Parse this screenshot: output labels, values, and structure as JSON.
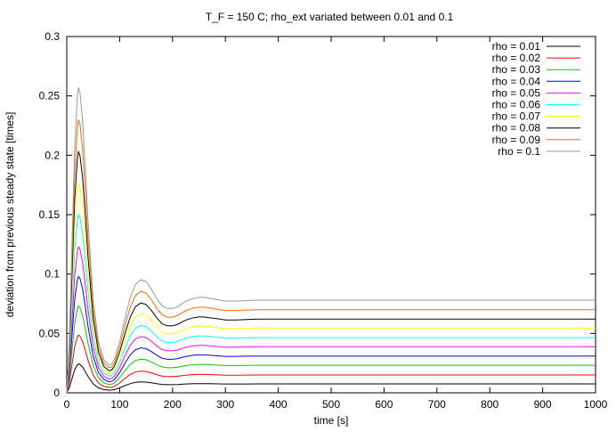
{
  "chart_data": {
    "type": "line",
    "title": "T_F = 150 C; rho_ext variated between 0.01 and 0.1",
    "xlabel": "time [s]",
    "ylabel": "deviation from previous steady state [times]",
    "xlim": [
      0,
      1000
    ],
    "ylim": [
      0,
      0.3
    ],
    "xticks": [
      0,
      100,
      200,
      300,
      400,
      500,
      600,
      700,
      800,
      900,
      1000
    ],
    "yticks": [
      0,
      0.05,
      0.1,
      0.15,
      0.2,
      0.25,
      0.3
    ],
    "xtick_labels": [
      "0",
      "100",
      "200",
      "300",
      "400",
      "500",
      "600",
      "700",
      "800",
      "900",
      "1000"
    ],
    "ytick_labels": [
      "0",
      "0.05",
      "0.1",
      "0.15",
      "0.2",
      "0.25",
      "0.3"
    ],
    "grid": false,
    "legend_position": "top-right",
    "base_x": [
      0,
      5,
      10,
      15,
      20,
      22,
      25,
      30,
      35,
      40,
      50,
      60,
      70,
      80,
      85,
      90,
      100,
      110,
      120,
      130,
      140,
      150,
      160,
      170,
      180,
      190,
      200,
      210,
      220,
      230,
      240,
      250,
      260,
      270,
      280,
      290,
      300,
      320,
      340,
      360,
      380,
      400,
      450,
      500,
      600,
      700,
      800,
      900,
      1000
    ],
    "series": [
      {
        "name": "rho = 0.01",
        "color": "#000000",
        "peak": 0.0243,
        "final": 0.0075
      },
      {
        "name": "rho = 0.02",
        "color": "#ff0000",
        "peak": 0.0486,
        "final": 0.015
      },
      {
        "name": "rho = 0.03",
        "color": "#00cc00",
        "peak": 0.0729,
        "final": 0.0232
      },
      {
        "name": "rho = 0.04",
        "color": "#0000ff",
        "peak": 0.0979,
        "final": 0.031
      },
      {
        "name": "rho = 0.05",
        "color": "#ff00ff",
        "peak": 0.123,
        "final": 0.0388
      },
      {
        "name": "rho = 0.06",
        "color": "#00ffff",
        "peak": 0.15,
        "final": 0.0465
      },
      {
        "name": "rho = 0.07",
        "color": "#ffff00",
        "peak": 0.176,
        "final": 0.0546
      },
      {
        "name": "rho = 0.08",
        "color": "#000000",
        "peak": 0.203,
        "final": 0.062
      },
      {
        "name": "rho = 0.09",
        "color": "#ff6600",
        "peak": 0.23,
        "final": 0.07
      },
      {
        "name": "rho = 0.1",
        "color": "#999999",
        "peak": 0.257,
        "final": 0.078
      }
    ]
  }
}
